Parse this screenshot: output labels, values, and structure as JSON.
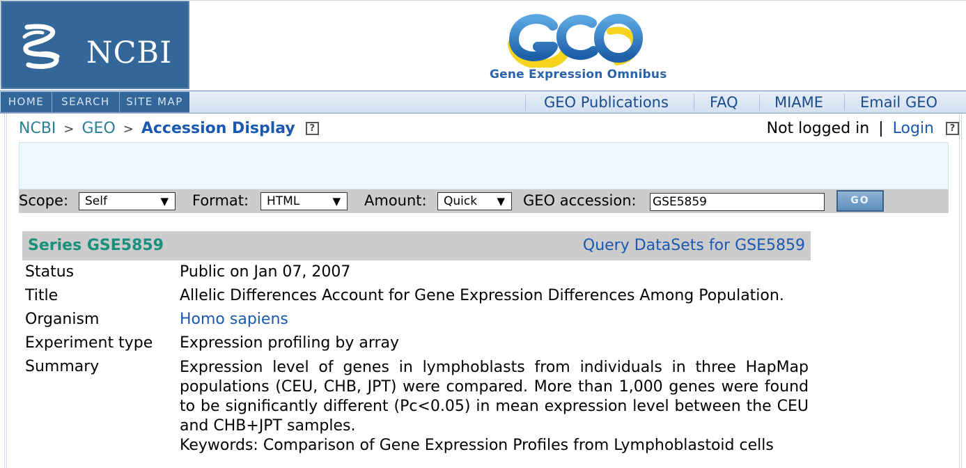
{
  "header": {
    "ncbi_label": "NCBI",
    "geo_logo_text": "GEO",
    "geo_tagline": "Gene Expression Omnibus"
  },
  "nav": {
    "left": [
      "HOME",
      "SEARCH",
      "SITE MAP"
    ],
    "right": [
      "GEO Publications",
      "FAQ",
      "MIAME",
      "Email GEO"
    ]
  },
  "breadcrumb": {
    "items": [
      "NCBI",
      "GEO"
    ],
    "separator": ">",
    "current": "Accession Display",
    "help": "?"
  },
  "login": {
    "status": "Not logged in",
    "divider": "|",
    "link": "Login",
    "help": "?"
  },
  "query": {
    "scope_label": "Scope:",
    "scope_value": "Self",
    "format_label": "Format:",
    "format_value": "HTML",
    "amount_label": "Amount:",
    "amount_value": "Quick",
    "accession_label": "GEO accession:",
    "accession_value": "GSE5859",
    "go_label": "GO"
  },
  "series": {
    "title": "Series GSE5859",
    "query_link": "Query DataSets for GSE5859",
    "rows": [
      {
        "label": "Status",
        "value": "Public on Jan 07, 2007"
      },
      {
        "label": "Title",
        "value": "Allelic Differences Account for Gene Expression Differences Among Population."
      },
      {
        "label": "Organism",
        "value": "Homo sapiens"
      },
      {
        "label": "Experiment type",
        "value": "Expression profiling by array"
      }
    ],
    "summary_label": "Summary",
    "summary": "Expression level of genes in lymphoblasts from individuals in three HapMap populations (CEU, CHB, JPT) were compared. More than 1,000 genes were found to be significantly different (Pc<0.05) in mean expression level between the CEU and CHB+JPT samples.",
    "keywords": "Keywords: Comparison of Gene Expression Profiles from Lymphoblastoid cells"
  },
  "colors": {
    "ncbi_blue": "#336699",
    "link_blue": "#1a58b0",
    "series_green": "#1a8f7c",
    "gray_bar": "#cccccc"
  }
}
